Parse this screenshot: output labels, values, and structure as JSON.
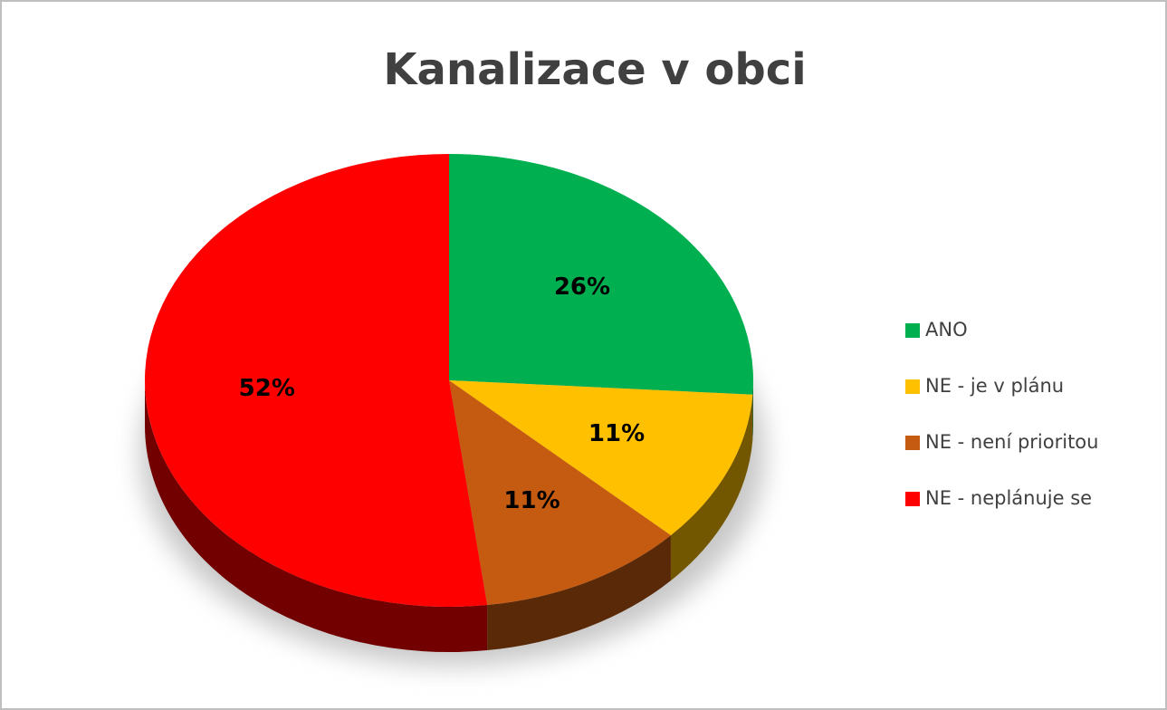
{
  "chart_data": {
    "type": "pie",
    "title": "Kanalizace v obci",
    "categories": [
      "ANO",
      "NE - je v plánu",
      "NE - není prioritou",
      "NE - neplánuje se"
    ],
    "values": [
      26,
      11,
      11,
      52
    ],
    "value_labels": [
      "26%",
      "11%",
      "11%",
      "52%"
    ],
    "colors": [
      "#00b050",
      "#ffc000",
      "#c55a11",
      "#ff0000"
    ],
    "legend": "right"
  }
}
